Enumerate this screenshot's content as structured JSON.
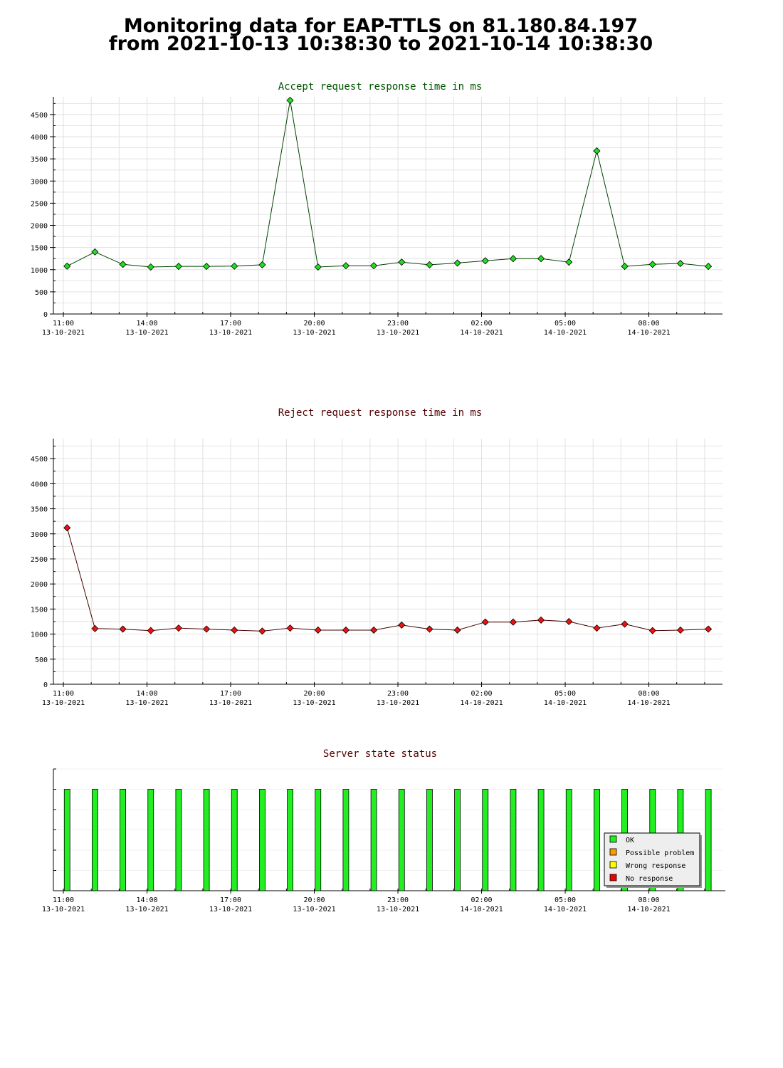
{
  "page": {
    "title_line1": "Monitoring data for EAP-TTLS on 81.180.84.197",
    "title_line2": "from 2021-10-13  10:38:30 to 2021-10-14  10:38:30"
  },
  "colors": {
    "accept_marker": "#22dd22",
    "reject_marker": "#ee1111",
    "accept_title": "#005500",
    "reject_title": "#550000",
    "status_title": "#550000",
    "ok": "#22ee22",
    "possible_problem": "#ff9900",
    "wrong_response": "#ffff00",
    "no_response": "#ee0000"
  },
  "x_ticks": [
    {
      "time": "11:00",
      "date": "13-10-2021"
    },
    {
      "time": "14:00",
      "date": "13-10-2021"
    },
    {
      "time": "17:00",
      "date": "13-10-2021"
    },
    {
      "time": "20:00",
      "date": "13-10-2021"
    },
    {
      "time": "23:00",
      "date": "13-10-2021"
    },
    {
      "time": "02:00",
      "date": "14-10-2021"
    },
    {
      "time": "05:00",
      "date": "14-10-2021"
    },
    {
      "time": "08:00",
      "date": "14-10-2021"
    }
  ],
  "chart_data": [
    {
      "type": "line",
      "title": "Accept request response time in ms",
      "x_range": [
        "2021-10-13 10:38:30",
        "2021-10-14 10:38:30"
      ],
      "ylim": [
        0,
        4900
      ],
      "yticks": [
        0,
        500,
        1000,
        1500,
        2000,
        2500,
        3000,
        3500,
        4000,
        4500
      ],
      "grid": true,
      "x": [
        "2021-10-13 11:08",
        "2021-10-13 12:08",
        "2021-10-13 13:08",
        "2021-10-13 14:08",
        "2021-10-13 15:08",
        "2021-10-13 16:08",
        "2021-10-13 17:08",
        "2021-10-13 18:08",
        "2021-10-13 19:08",
        "2021-10-13 20:08",
        "2021-10-13 21:08",
        "2021-10-13 22:08",
        "2021-10-13 23:08",
        "2021-10-14 00:08",
        "2021-10-14 01:08",
        "2021-10-14 02:08",
        "2021-10-14 03:08",
        "2021-10-14 04:08",
        "2021-10-14 05:08",
        "2021-10-14 06:08",
        "2021-10-14 07:08",
        "2021-10-14 08:08",
        "2021-10-14 09:08",
        "2021-10-14 10:08"
      ],
      "values": [
        1080,
        1400,
        1120,
        1060,
        1075,
        1075,
        1080,
        1110,
        4820,
        1060,
        1090,
        1090,
        1170,
        1110,
        1150,
        1200,
        1250,
        1250,
        1170,
        3680,
        1075,
        1120,
        1140,
        1075
      ]
    },
    {
      "type": "line",
      "title": "Reject request response time in ms",
      "x_range": [
        "2021-10-13 10:38:30",
        "2021-10-14 10:38:30"
      ],
      "ylim": [
        0,
        4900
      ],
      "yticks": [
        0,
        500,
        1000,
        1500,
        2000,
        2500,
        3000,
        3500,
        4000,
        4500
      ],
      "grid": true,
      "x": [
        "2021-10-13 11:08",
        "2021-10-13 12:08",
        "2021-10-13 13:08",
        "2021-10-13 14:08",
        "2021-10-13 15:08",
        "2021-10-13 16:08",
        "2021-10-13 17:08",
        "2021-10-13 18:08",
        "2021-10-13 19:08",
        "2021-10-13 20:08",
        "2021-10-13 21:08",
        "2021-10-13 22:08",
        "2021-10-13 23:08",
        "2021-10-14 00:08",
        "2021-10-14 01:08",
        "2021-10-14 02:08",
        "2021-10-14 03:08",
        "2021-10-14 04:08",
        "2021-10-14 05:08",
        "2021-10-14 06:08",
        "2021-10-14 07:08",
        "2021-10-14 08:08",
        "2021-10-14 09:08",
        "2021-10-14 10:08"
      ],
      "values": [
        3120,
        1110,
        1100,
        1070,
        1120,
        1100,
        1080,
        1060,
        1120,
        1080,
        1080,
        1080,
        1180,
        1100,
        1080,
        1240,
        1240,
        1280,
        1250,
        1120,
        1200,
        1070,
        1080,
        1100
      ]
    },
    {
      "type": "bar",
      "title": "Server state status",
      "x_range": [
        "2021-10-13 10:38:30",
        "2021-10-14 10:38:30"
      ],
      "x": [
        "2021-10-13 11:08",
        "2021-10-13 12:08",
        "2021-10-13 13:08",
        "2021-10-13 14:08",
        "2021-10-13 15:08",
        "2021-10-13 16:08",
        "2021-10-13 17:08",
        "2021-10-13 18:08",
        "2021-10-13 19:08",
        "2021-10-13 20:08",
        "2021-10-13 21:08",
        "2021-10-13 22:08",
        "2021-10-13 23:08",
        "2021-10-14 00:08",
        "2021-10-14 01:08",
        "2021-10-14 02:08",
        "2021-10-14 03:08",
        "2021-10-14 04:08",
        "2021-10-14 05:08",
        "2021-10-14 06:08",
        "2021-10-14 07:08",
        "2021-10-14 08:08",
        "2021-10-14 09:08",
        "2021-10-14 10:08"
      ],
      "values": [
        "OK",
        "OK",
        "OK",
        "OK",
        "OK",
        "OK",
        "OK",
        "OK",
        "OK",
        "OK",
        "OK",
        "OK",
        "OK",
        "OK",
        "OK",
        "OK",
        "OK",
        "OK",
        "OK",
        "OK",
        "OK",
        "OK",
        "OK",
        "OK"
      ],
      "legend_position": "bottom-right",
      "legend": [
        {
          "label": "OK",
          "color": "#22ee22"
        },
        {
          "label": "Possible problem",
          "color": "#ff9900"
        },
        {
          "label": "Wrong response",
          "color": "#ffff00"
        },
        {
          "label": "No response",
          "color": "#ee0000"
        }
      ]
    }
  ]
}
